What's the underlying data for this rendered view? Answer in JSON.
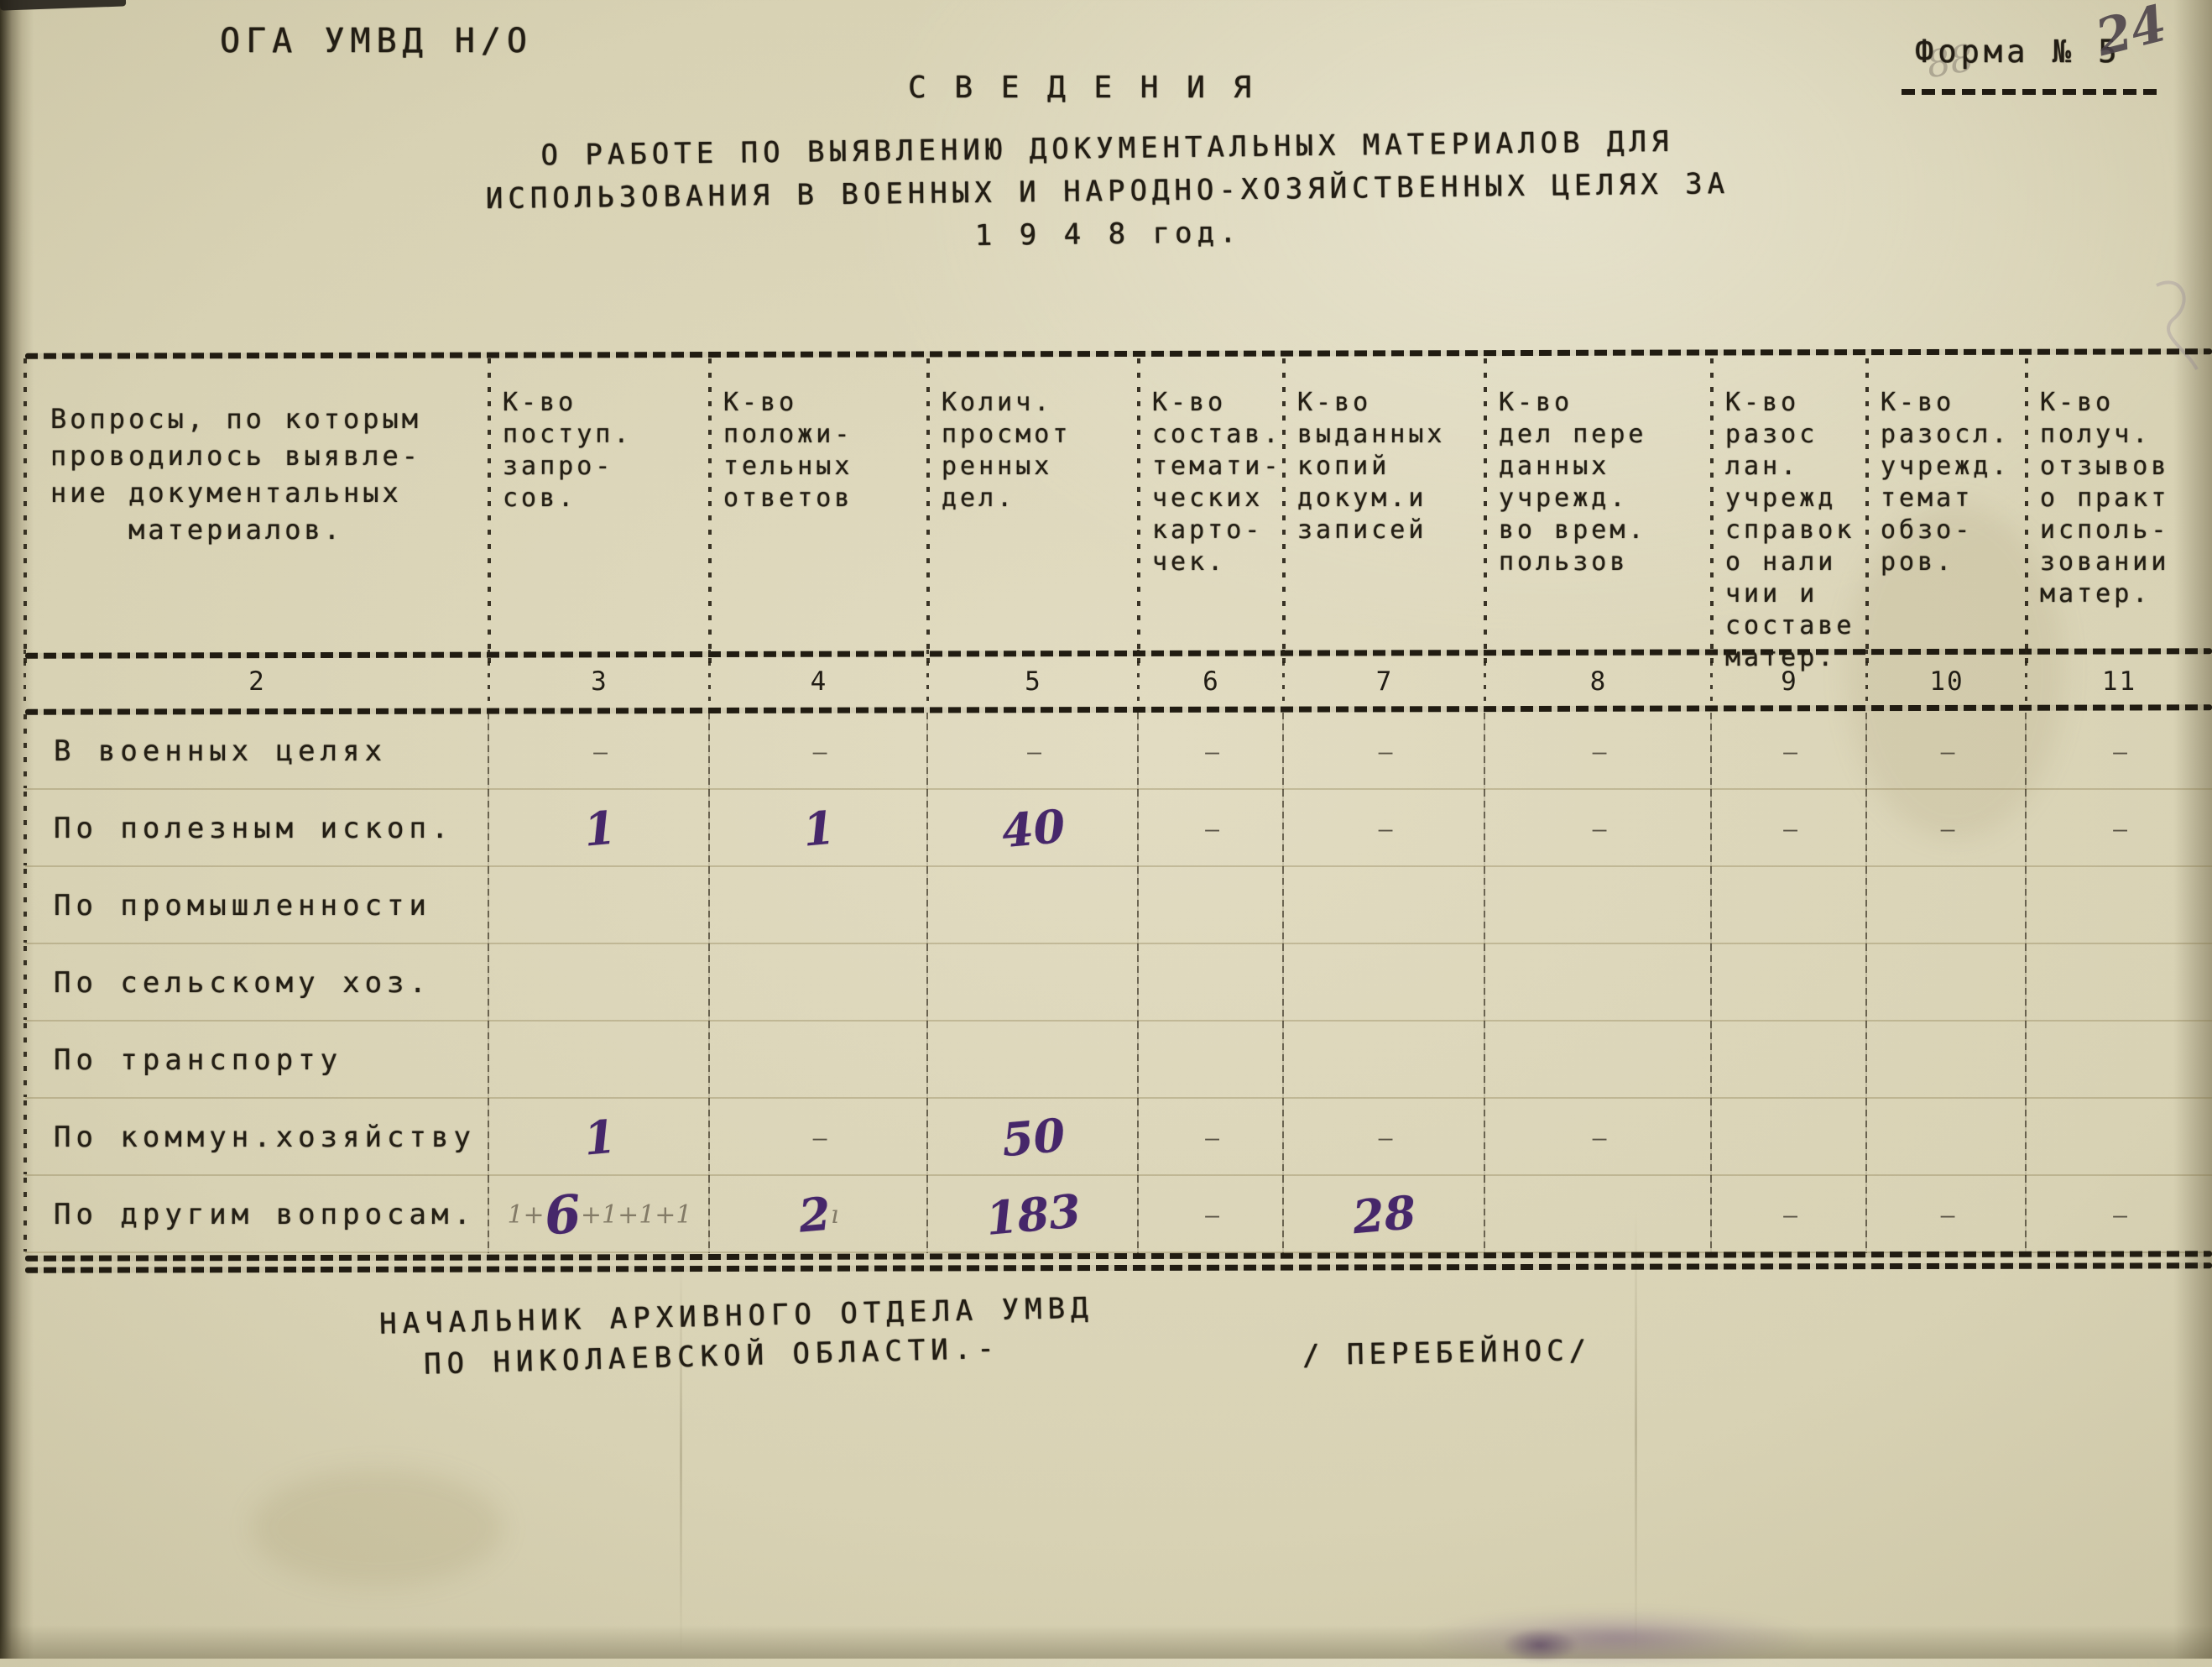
{
  "page": {
    "archive_code": "ОГА УМВД Н/О",
    "form_label": "Форма № 5",
    "handwritten_page_number": "24",
    "pencil_note": "88",
    "heading": "С В Е Д Е Н И Я",
    "title_lines": [
      "О РАБОТЕ ПО ВЫЯВЛЕНИЮ ДОКУМЕНТАЛЬНЫХ МАТЕРИАЛОВ ДЛЯ",
      "ИСПОЛЬЗОВАНИЯ В ВОЕННЫХ И НАРОДНО-ХОЗЯЙСТВЕННЫХ ЦЕЛЯХ ЗА",
      "1 9 4 8  год."
    ]
  },
  "table": {
    "column_numbers": [
      "2",
      "3",
      "4",
      "5",
      "6",
      "7",
      "8",
      "9",
      "10",
      "11"
    ],
    "headers": [
      "Вопросы, по которым\nпроводилось выявле-\nние документальных\n    материалов.",
      "К-во\nпоступ.\nзапро-\nсов.",
      "К-во\nположи-\nтельных\nответов",
      "Колич.\nпросмот\nренных\nдел.",
      "К-во\nсостав.\nтемати-\nческих\nкарто-\nчек.",
      "К-во\nвыданных\nкопий\nдокум.и\nзаписей",
      "К-во\nдел пере\nданных\nучрежд.\nво врем.\nпользов",
      "К-во\nразос\nлан.\nучрежд\nсправок\nо нали\nчии и\nсоставе\nматер.",
      "К-во\nразосл.\nучрежд.\nтемат\nобзо-\nров.",
      "К-во\nполуч.\nотзывов\nо практ\nисполь-\nзовании\nматер."
    ],
    "rows": [
      {
        "label": "В военных целях",
        "cells": [
          {
            "v": "—",
            "s": "dash"
          },
          {
            "v": "—",
            "s": "dash"
          },
          {
            "v": "—",
            "s": "dash"
          },
          {
            "v": "—",
            "s": "dash"
          },
          {
            "v": "—",
            "s": "dash"
          },
          {
            "v": "—",
            "s": "dash"
          },
          {
            "v": "—",
            "s": "dash"
          },
          {
            "v": "—",
            "s": "dash"
          },
          {
            "v": "—",
            "s": "dash"
          }
        ]
      },
      {
        "label": "По полезным ископ.",
        "cells": [
          {
            "v": "1",
            "s": "ink"
          },
          {
            "v": "1",
            "s": "ink"
          },
          {
            "v": "40",
            "s": "ink"
          },
          {
            "v": "—",
            "s": "dash"
          },
          {
            "v": "—",
            "s": "dash"
          },
          {
            "v": "—",
            "s": "dash"
          },
          {
            "v": "—",
            "s": "dash"
          },
          {
            "v": "—",
            "s": "dash"
          },
          {
            "v": "—",
            "s": "dash"
          }
        ]
      },
      {
        "label": "По промышленности",
        "cells": [
          {
            "v": "",
            "s": "empty"
          },
          {
            "v": "",
            "s": "empty"
          },
          {
            "v": "",
            "s": "empty"
          },
          {
            "v": "",
            "s": "empty"
          },
          {
            "v": "",
            "s": "empty"
          },
          {
            "v": "",
            "s": "empty"
          },
          {
            "v": "",
            "s": "empty"
          },
          {
            "v": "",
            "s": "empty"
          },
          {
            "v": "",
            "s": "empty"
          }
        ]
      },
      {
        "label": "По сельскому хоз.",
        "cells": [
          {
            "v": "",
            "s": "empty"
          },
          {
            "v": "",
            "s": "empty"
          },
          {
            "v": "",
            "s": "empty"
          },
          {
            "v": "",
            "s": "empty"
          },
          {
            "v": "",
            "s": "empty"
          },
          {
            "v": "",
            "s": "empty"
          },
          {
            "v": "",
            "s": "empty"
          },
          {
            "v": "",
            "s": "empty"
          },
          {
            "v": "",
            "s": "empty"
          }
        ]
      },
      {
        "label": "По транспорту",
        "cells": [
          {
            "v": "",
            "s": "empty"
          },
          {
            "v": "",
            "s": "empty"
          },
          {
            "v": "",
            "s": "empty"
          },
          {
            "v": "",
            "s": "empty"
          },
          {
            "v": "",
            "s": "empty"
          },
          {
            "v": "",
            "s": "empty"
          },
          {
            "v": "",
            "s": "empty"
          },
          {
            "v": "",
            "s": "empty"
          },
          {
            "v": "",
            "s": "empty"
          }
        ]
      },
      {
        "label": "По коммун.хозяйству",
        "cells": [
          {
            "v": "1",
            "s": "ink"
          },
          {
            "v": "—",
            "s": "dash"
          },
          {
            "v": "50",
            "s": "ink"
          },
          {
            "v": "—",
            "s": "dash"
          },
          {
            "v": "—",
            "s": "dash"
          },
          {
            "v": "—",
            "s": "dash"
          },
          {
            "v": "",
            "s": "empty"
          },
          {
            "v": "",
            "s": "empty"
          },
          {
            "v": "",
            "s": "empty"
          }
        ]
      },
      {
        "label": "По другим вопросам.",
        "cells": [
          {
            "s": "mixed",
            "parts": [
              {
                "v": "1+",
                "s": "pencil"
              },
              {
                "v": "6",
                "s": "ink big"
              },
              {
                "v": "+1+1+1",
                "s": "pencil"
              }
            ]
          },
          {
            "s": "mixed",
            "parts": [
              {
                "v": "2",
                "s": "ink"
              },
              {
                "v": "ı",
                "s": "pencil"
              }
            ]
          },
          {
            "v": "183",
            "s": "ink"
          },
          {
            "v": "—",
            "s": "dash"
          },
          {
            "v": "28",
            "s": "ink"
          },
          {
            "v": "",
            "s": "empty"
          },
          {
            "v": "—",
            "s": "dash"
          },
          {
            "v": "—",
            "s": "dash"
          },
          {
            "v": "—",
            "s": "dash"
          }
        ]
      }
    ]
  },
  "footer": {
    "signature_title_line1": "НАЧАЛЬНИК АРХИВНОГО ОТДЕЛА УМВД",
    "signature_title_line2": "ПО НИКОЛАЕВСКОЙ ОБЛАСТИ.-",
    "signature_name": "/ ПЕРЕБЕЙНОС/"
  },
  "colors": {
    "paper": "#d8d2b4",
    "typed_ink": "#221d14",
    "handwritten_ink": "#46276a",
    "pencil": "#6e6554"
  }
}
